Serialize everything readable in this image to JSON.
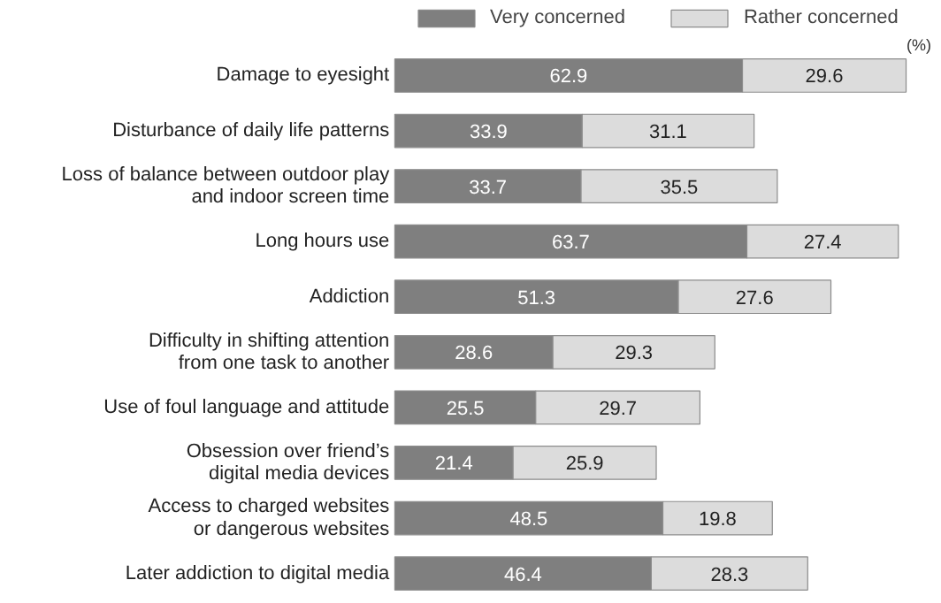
{
  "chart_data": {
    "type": "bar",
    "orientation": "horizontal",
    "stacked": true,
    "data_labels": true,
    "legend": "top right",
    "grid": false,
    "annotations": [
      "(%)"
    ],
    "categories": [
      "Damage to eyesight",
      "Disturbance of daily life patterns",
      "Loss of balance between outdoor play\nand indoor screen time",
      "Long hours use",
      "Addiction",
      "Difficulty in shifting attention\nfrom one task to another",
      "Use of foul language and attitude",
      "Obsession over friend’s\ndigital media devices",
      "Access to charged websites\nor dangerous websites",
      "Later addiction to digital media"
    ],
    "series": [
      {
        "name": "Very concerned",
        "color": "#7f7f7f",
        "values": [
          62.9,
          33.9,
          33.7,
          63.7,
          51.3,
          28.6,
          25.5,
          21.4,
          48.5,
          46.4
        ]
      },
      {
        "name": "Rather concerned",
        "color": "#dcdcdc",
        "values": [
          29.6,
          31.1,
          35.5,
          27.4,
          27.6,
          29.3,
          29.7,
          25.9,
          19.8,
          28.3
        ]
      }
    ]
  }
}
